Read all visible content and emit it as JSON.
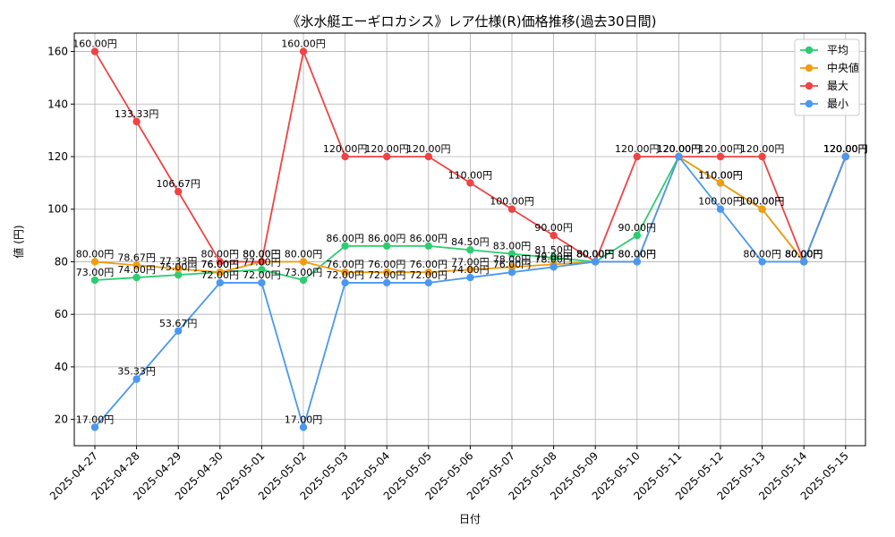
{
  "chart_data": {
    "type": "line",
    "title": "《氷水艇エーギロカシス》レア仕様(R)価格推移(過去30日間)",
    "xlabel": "日付",
    "ylabel": "値 (円)",
    "ylim": [
      10,
      167
    ],
    "yticks": [
      20,
      40,
      60,
      80,
      100,
      120,
      140,
      160
    ],
    "grid": true,
    "legend_position": "top-right",
    "value_suffix": "円",
    "categories": [
      "2025-04-27",
      "2025-04-28",
      "2025-04-29",
      "2025-04-30",
      "2025-05-01",
      "2025-05-02",
      "2025-05-03",
      "2025-05-04",
      "2025-05-05",
      "2025-05-06",
      "2025-05-07",
      "2025-05-08",
      "2025-05-09",
      "2025-05-10",
      "2025-05-11",
      "2025-05-12",
      "2025-05-13",
      "2025-05-14",
      "2025-05-15"
    ],
    "series": [
      {
        "name": "平均",
        "color": "#2ecc71",
        "values": [
          73.0,
          74.0,
          75.0,
          76.0,
          77.0,
          73.0,
          86.0,
          86.0,
          86.0,
          84.5,
          83.0,
          81.5,
          80.0,
          90.0,
          120.0,
          110.0,
          100.0,
          80.0,
          120.0
        ]
      },
      {
        "name": "中央値",
        "color": "#f39c12",
        "values": [
          80.0,
          78.67,
          77.33,
          76.0,
          80.0,
          80.0,
          76.0,
          76.0,
          76.0,
          77.0,
          78.0,
          79.0,
          80.0,
          80.0,
          120.0,
          110.0,
          100.0,
          80.0,
          120.0
        ]
      },
      {
        "name": "最大",
        "color": "#ef4444",
        "values": [
          160.0,
          133.33,
          106.67,
          80.0,
          80.0,
          160.0,
          120.0,
          120.0,
          120.0,
          110.0,
          100.0,
          90.0,
          80.0,
          120.0,
          120.0,
          120.0,
          120.0,
          80.0,
          120.0
        ]
      },
      {
        "name": "最小",
        "color": "#4a98f0",
        "values": [
          17.0,
          35.33,
          53.67,
          72.0,
          72.0,
          17.0,
          72.0,
          72.0,
          72.0,
          74.0,
          76.0,
          78.0,
          80.0,
          80.0,
          120.0,
          100.0,
          80.0,
          80.0,
          120.0
        ]
      }
    ]
  }
}
